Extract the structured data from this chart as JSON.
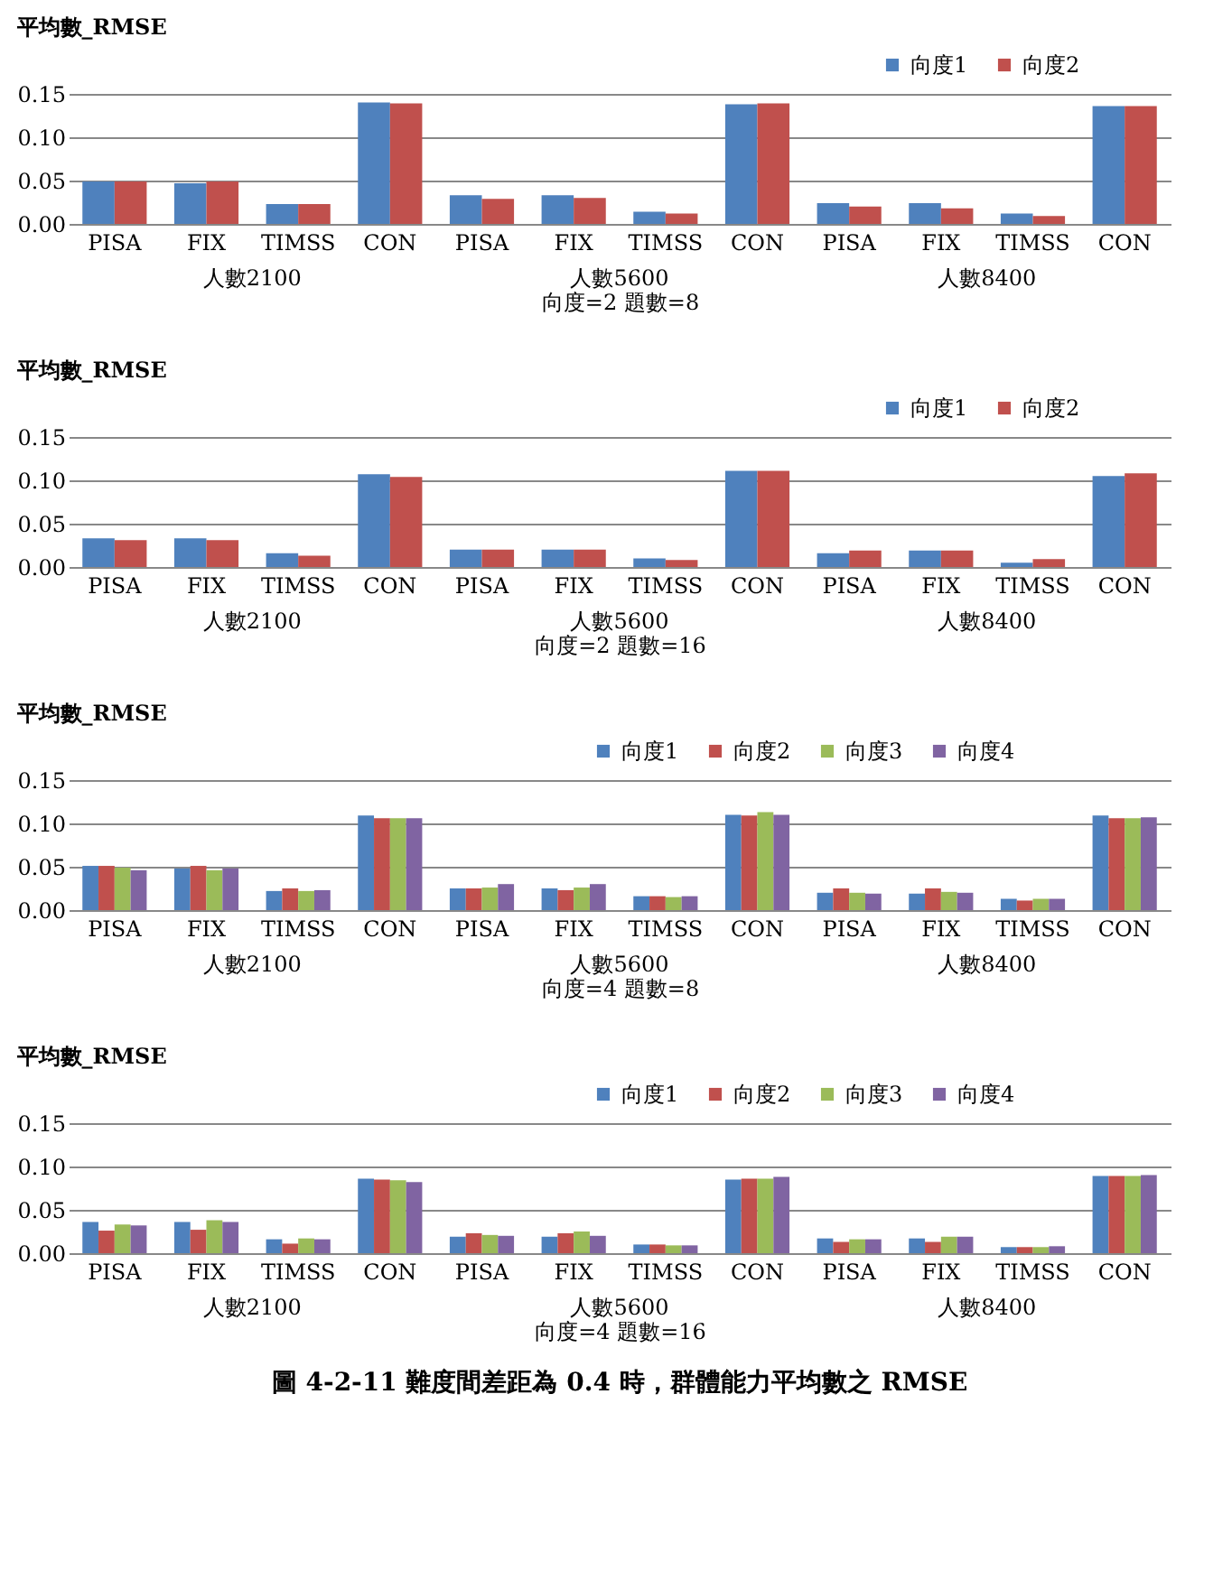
{
  "chart_data": [
    {
      "type": "bar",
      "title": "平均數_RMSE",
      "xlabel": "向度=2 題數=8",
      "categories": [
        "PISA",
        "FIX",
        "TIMSS",
        "CON",
        "PISA",
        "FIX",
        "TIMSS",
        "CON",
        "PISA",
        "FIX",
        "TIMSS",
        "CON"
      ],
      "series": [
        {
          "name": "向度1",
          "color": "#4f81bd",
          "values": [
            0.049,
            0.047,
            0.023,
            0.14,
            0.033,
            0.033,
            0.014,
            0.138,
            0.024,
            0.024,
            0.012,
            0.136
          ]
        },
        {
          "name": "向度2",
          "color": "#c0504d",
          "values": [
            0.049,
            0.049,
            0.023,
            0.139,
            0.029,
            0.03,
            0.012,
            0.139,
            0.02,
            0.018,
            0.009,
            0.136
          ]
        }
      ],
      "ylim": [
        0,
        0.15
      ],
      "yticks": [
        {
          "value": 0,
          "label": "0.00"
        },
        {
          "value": 0.05,
          "label": "0.05"
        },
        {
          "value": 0.1,
          "label": "0.10"
        },
        {
          "value": 0.15,
          "label": "0.15"
        }
      ],
      "grid": "y",
      "legend": "top right",
      "annotations": [
        "人數2100",
        "人數5600",
        "人數8400"
      ]
    },
    {
      "type": "bar",
      "title": "平均數_RMSE",
      "xlabel": "向度=2 題數=16",
      "categories": [
        "PISA",
        "FIX",
        "TIMSS",
        "CON",
        "PISA",
        "FIX",
        "TIMSS",
        "CON",
        "PISA",
        "FIX",
        "TIMSS",
        "CON"
      ],
      "series": [
        {
          "name": "向度1",
          "color": "#4f81bd",
          "values": [
            0.033,
            0.033,
            0.016,
            0.107,
            0.02,
            0.02,
            0.01,
            0.111,
            0.016,
            0.019,
            0.005,
            0.105
          ]
        },
        {
          "name": "向度2",
          "color": "#c0504d",
          "values": [
            0.031,
            0.031,
            0.013,
            0.104,
            0.02,
            0.02,
            0.008,
            0.111,
            0.019,
            0.019,
            0.009,
            0.108
          ]
        }
      ],
      "ylim": [
        0,
        0.15
      ],
      "yticks": [
        {
          "value": 0,
          "label": "0.00"
        },
        {
          "value": 0.05,
          "label": "0.05"
        },
        {
          "value": 0.1,
          "label": "0.10"
        },
        {
          "value": 0.15,
          "label": "0.15"
        }
      ],
      "grid": "y",
      "legend": "top right",
      "annotations": [
        "人數2100",
        "人數5600",
        "人數8400"
      ]
    },
    {
      "type": "bar",
      "title": "平均數_RMSE",
      "xlabel": "向度=4 題數=8",
      "categories": [
        "PISA",
        "FIX",
        "TIMSS",
        "CON",
        "PISA",
        "FIX",
        "TIMSS",
        "CON",
        "PISA",
        "FIX",
        "TIMSS",
        "CON"
      ],
      "series": [
        {
          "name": "向度1",
          "color": "#4f81bd",
          "values": [
            0.051,
            0.048,
            0.022,
            0.109,
            0.025,
            0.025,
            0.016,
            0.11,
            0.02,
            0.019,
            0.013,
            0.109
          ]
        },
        {
          "name": "向度2",
          "color": "#c0504d",
          "values": [
            0.051,
            0.051,
            0.025,
            0.106,
            0.025,
            0.023,
            0.016,
            0.109,
            0.025,
            0.025,
            0.011,
            0.106
          ]
        },
        {
          "name": "向度3",
          "color": "#9bbb59",
          "values": [
            0.049,
            0.046,
            0.022,
            0.106,
            0.026,
            0.026,
            0.015,
            0.113,
            0.02,
            0.021,
            0.013,
            0.106
          ]
        },
        {
          "name": "向度4",
          "color": "#8064a2",
          "values": [
            0.046,
            0.048,
            0.023,
            0.106,
            0.03,
            0.03,
            0.016,
            0.11,
            0.019,
            0.02,
            0.013,
            0.107
          ]
        }
      ],
      "ylim": [
        0,
        0.15
      ],
      "yticks": [
        {
          "value": 0,
          "label": "0.00"
        },
        {
          "value": 0.05,
          "label": "0.05"
        },
        {
          "value": 0.1,
          "label": "0.10"
        },
        {
          "value": 0.15,
          "label": "0.15"
        }
      ],
      "grid": "y",
      "legend": "top right",
      "annotations": [
        "人數2100",
        "人數5600",
        "人數8400"
      ]
    },
    {
      "type": "bar",
      "title": "平均數_RMSE",
      "xlabel": "向度=4 題數=16",
      "categories": [
        "PISA",
        "FIX",
        "TIMSS",
        "CON",
        "PISA",
        "FIX",
        "TIMSS",
        "CON",
        "PISA",
        "FIX",
        "TIMSS",
        "CON"
      ],
      "series": [
        {
          "name": "向度1",
          "color": "#4f81bd",
          "values": [
            0.036,
            0.036,
            0.016,
            0.086,
            0.019,
            0.019,
            0.01,
            0.085,
            0.017,
            0.017,
            0.007,
            0.089
          ]
        },
        {
          "name": "向度2",
          "color": "#c0504d",
          "values": [
            0.026,
            0.027,
            0.011,
            0.085,
            0.023,
            0.023,
            0.01,
            0.086,
            0.013,
            0.013,
            0.007,
            0.089
          ]
        },
        {
          "name": "向度3",
          "color": "#9bbb59",
          "values": [
            0.033,
            0.038,
            0.017,
            0.084,
            0.021,
            0.025,
            0.009,
            0.086,
            0.016,
            0.019,
            0.007,
            0.089
          ]
        },
        {
          "name": "向度4",
          "color": "#8064a2",
          "values": [
            0.032,
            0.036,
            0.016,
            0.082,
            0.02,
            0.02,
            0.009,
            0.088,
            0.016,
            0.019,
            0.008,
            0.09
          ]
        }
      ],
      "ylim": [
        0,
        0.15
      ],
      "yticks": [
        {
          "value": 0,
          "label": "0.00"
        },
        {
          "value": 0.05,
          "label": "0.05"
        },
        {
          "value": 0.1,
          "label": "0.10"
        },
        {
          "value": 0.15,
          "label": "0.15"
        }
      ],
      "grid": "y",
      "legend": "top right",
      "annotations": [
        "人數2100",
        "人數5600",
        "人數8400",
        "圖 4-2-11 難度間差距為 0.4 時，群體能力平均數之 RMSE"
      ]
    }
  ]
}
